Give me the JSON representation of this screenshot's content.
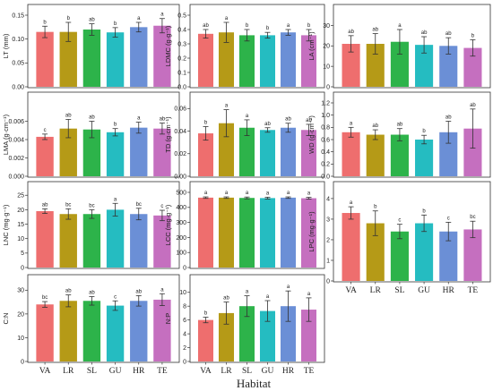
{
  "chart_data": {
    "type": "bar",
    "xlabel": "Habitat",
    "categories": [
      "VA",
      "LR",
      "SL",
      "GU",
      "HR",
      "TE"
    ],
    "colors": [
      "#ee6e6e",
      "#b59a17",
      "#2db34a",
      "#25bcc1",
      "#6b8fd6",
      "#c56fbf"
    ],
    "panels": [
      {
        "id": "LT",
        "ylabel": "LT (mm)",
        "ylim": [
          0,
          0.15
        ],
        "yticks": [
          0.0,
          0.05,
          0.1,
          0.15
        ],
        "ytick_labels": [
          "0.00",
          "0.05",
          "0.10",
          "0.15"
        ],
        "values": [
          0.115,
          0.115,
          0.12,
          0.114,
          0.125,
          0.128
        ],
        "errors": [
          0.012,
          0.02,
          0.012,
          0.01,
          0.01,
          0.015
        ],
        "letters": [
          "b",
          "b",
          "ab",
          "b",
          "a",
          "a"
        ]
      },
      {
        "id": "LDMC",
        "ylabel": "LDMC (g·g⁻¹)",
        "ylim": [
          0,
          0.5
        ],
        "yticks": [
          0.0,
          0.1,
          0.2,
          0.3,
          0.4,
          0.5
        ],
        "ytick_labels": [
          "0.0",
          "0.1",
          "0.2",
          "0.3",
          "0.4",
          "0.5"
        ],
        "values": [
          0.37,
          0.38,
          0.36,
          0.36,
          0.38,
          0.36
        ],
        "errors": [
          0.03,
          0.07,
          0.04,
          0.02,
          0.02,
          0.04
        ],
        "letters": [
          "ab",
          "a",
          "b",
          "b",
          "a",
          "b"
        ]
      },
      {
        "id": "LA",
        "ylabel": "LA (cm⁻¹)",
        "ylim": [
          0,
          35
        ],
        "yticks": [
          0,
          10,
          20,
          30
        ],
        "ytick_labels": [
          "0",
          "10",
          "20",
          "30"
        ],
        "values": [
          21,
          21,
          22,
          20.5,
          20,
          19
        ],
        "errors": [
          4,
          5,
          6,
          4,
          4,
          4
        ],
        "letters": [
          "ab",
          "ab",
          "a",
          "ab",
          "ab",
          "b"
        ]
      },
      {
        "id": "LMA",
        "ylabel": "LMA (g·cm⁻¹)",
        "ylim": [
          0,
          0.008
        ],
        "yticks": [
          0.0,
          0.002,
          0.004,
          0.006
        ],
        "ytick_labels": [
          "0.000",
          "0.002",
          "0.004",
          "0.006"
        ],
        "values": [
          0.0043,
          0.0052,
          0.0051,
          0.0048,
          0.0053,
          0.0052
        ],
        "errors": [
          0.0003,
          0.001,
          0.0009,
          0.0004,
          0.0006,
          0.0006
        ],
        "letters": [
          "c",
          "ab",
          "ab",
          "b",
          "a",
          "ab"
        ]
      },
      {
        "id": "TD",
        "ylabel": "TD (g·cm⁻¹)",
        "ylim": [
          0,
          0.065
        ],
        "yticks": [
          0.0,
          0.02,
          0.04,
          0.06
        ],
        "ytick_labels": [
          "0.00",
          "0.02",
          "0.04",
          "0.06"
        ],
        "values": [
          0.038,
          0.047,
          0.043,
          0.041,
          0.043,
          0.041
        ],
        "errors": [
          0.006,
          0.012,
          0.007,
          0.002,
          0.004,
          0.005
        ],
        "letters": [
          "b",
          "a",
          "a",
          "ab",
          "ab",
          "ab"
        ]
      },
      {
        "id": "WD",
        "ylabel": "WD (g·cm⁻¹)",
        "ylim": [
          0,
          1.2
        ],
        "yticks": [
          0.0,
          0.2,
          0.4,
          0.6,
          0.8,
          1.0,
          1.2
        ],
        "ytick_labels": [
          "0.0",
          "0.2",
          "0.4",
          "0.6",
          "0.8",
          "1.0",
          "1.2"
        ],
        "values": [
          0.72,
          0.68,
          0.68,
          0.6,
          0.72,
          0.78
        ],
        "errors": [
          0.08,
          0.08,
          0.1,
          0.07,
          0.18,
          0.32
        ],
        "letters": [
          "a",
          "ab",
          "ab",
          "b",
          "ab",
          "ab"
        ]
      },
      {
        "id": "LNC",
        "ylabel": "LNC (mg·g⁻¹)",
        "ylim": [
          0,
          26
        ],
        "yticks": [
          0,
          5,
          10,
          15,
          20,
          25
        ],
        "ytick_labels": [
          "0",
          "5",
          "10",
          "15",
          "20",
          "25"
        ],
        "values": [
          19.5,
          18.5,
          18.5,
          20,
          18.5,
          18
        ],
        "errors": [
          0.8,
          1.8,
          1.5,
          2.2,
          2.0,
          1.8
        ],
        "letters": [
          "ab",
          "bc",
          "bc",
          "a",
          "bc",
          "c"
        ]
      },
      {
        "id": "LCC",
        "ylabel": "LCC (mg·g⁻¹)",
        "ylim": [
          0,
          500
        ],
        "yticks": [
          0,
          100,
          200,
          300,
          400,
          500
        ],
        "ytick_labels": [
          "0",
          "100",
          "200",
          "300",
          "400",
          "500"
        ],
        "values": [
          465,
          465,
          463,
          462,
          465,
          461
        ],
        "errors": [
          5,
          5,
          6,
          6,
          5,
          6
        ],
        "letters": [
          "a",
          "a",
          "a",
          "a",
          "a",
          "a"
        ]
      },
      {
        "id": "LPC",
        "ylabel": "LPC (mg·g⁻¹)",
        "ylim": [
          0,
          4.3
        ],
        "yticks": [
          0,
          1,
          2,
          3,
          4
        ],
        "ytick_labels": [
          "0",
          "1",
          "2",
          "3",
          "4"
        ],
        "values": [
          3.3,
          2.8,
          2.4,
          2.8,
          2.4,
          2.5
        ],
        "errors": [
          0.3,
          0.6,
          0.35,
          0.4,
          0.45,
          0.4
        ],
        "letters": [
          "a",
          "b",
          "c",
          "b",
          "c",
          "bc"
        ]
      },
      {
        "id": "CN",
        "ylabel": "C:N",
        "ylim": [
          0,
          32
        ],
        "yticks": [
          0,
          10,
          20,
          30
        ],
        "ytick_labels": [
          "0",
          "10",
          "20",
          "30"
        ],
        "values": [
          24,
          25.5,
          25.5,
          23.5,
          25.5,
          26
        ],
        "errors": [
          1.2,
          2.5,
          1.8,
          2.0,
          2.2,
          2.5
        ],
        "letters": [
          "bc",
          "ab",
          "ab",
          "c",
          "ab",
          "a"
        ]
      },
      {
        "id": "NP",
        "ylabel": "N:P",
        "ylim": [
          0,
          11
        ],
        "yticks": [
          0,
          2,
          4,
          6,
          8,
          10
        ],
        "ytick_labels": [
          "0",
          "2",
          "4",
          "6",
          "8",
          "10"
        ],
        "values": [
          6,
          7,
          8,
          7.3,
          8,
          7.5
        ],
        "errors": [
          0.4,
          1.6,
          1.5,
          1.5,
          2.2,
          1.7
        ],
        "letters": [
          "b",
          "ab",
          "a",
          "a",
          "a",
          "a"
        ]
      }
    ]
  }
}
